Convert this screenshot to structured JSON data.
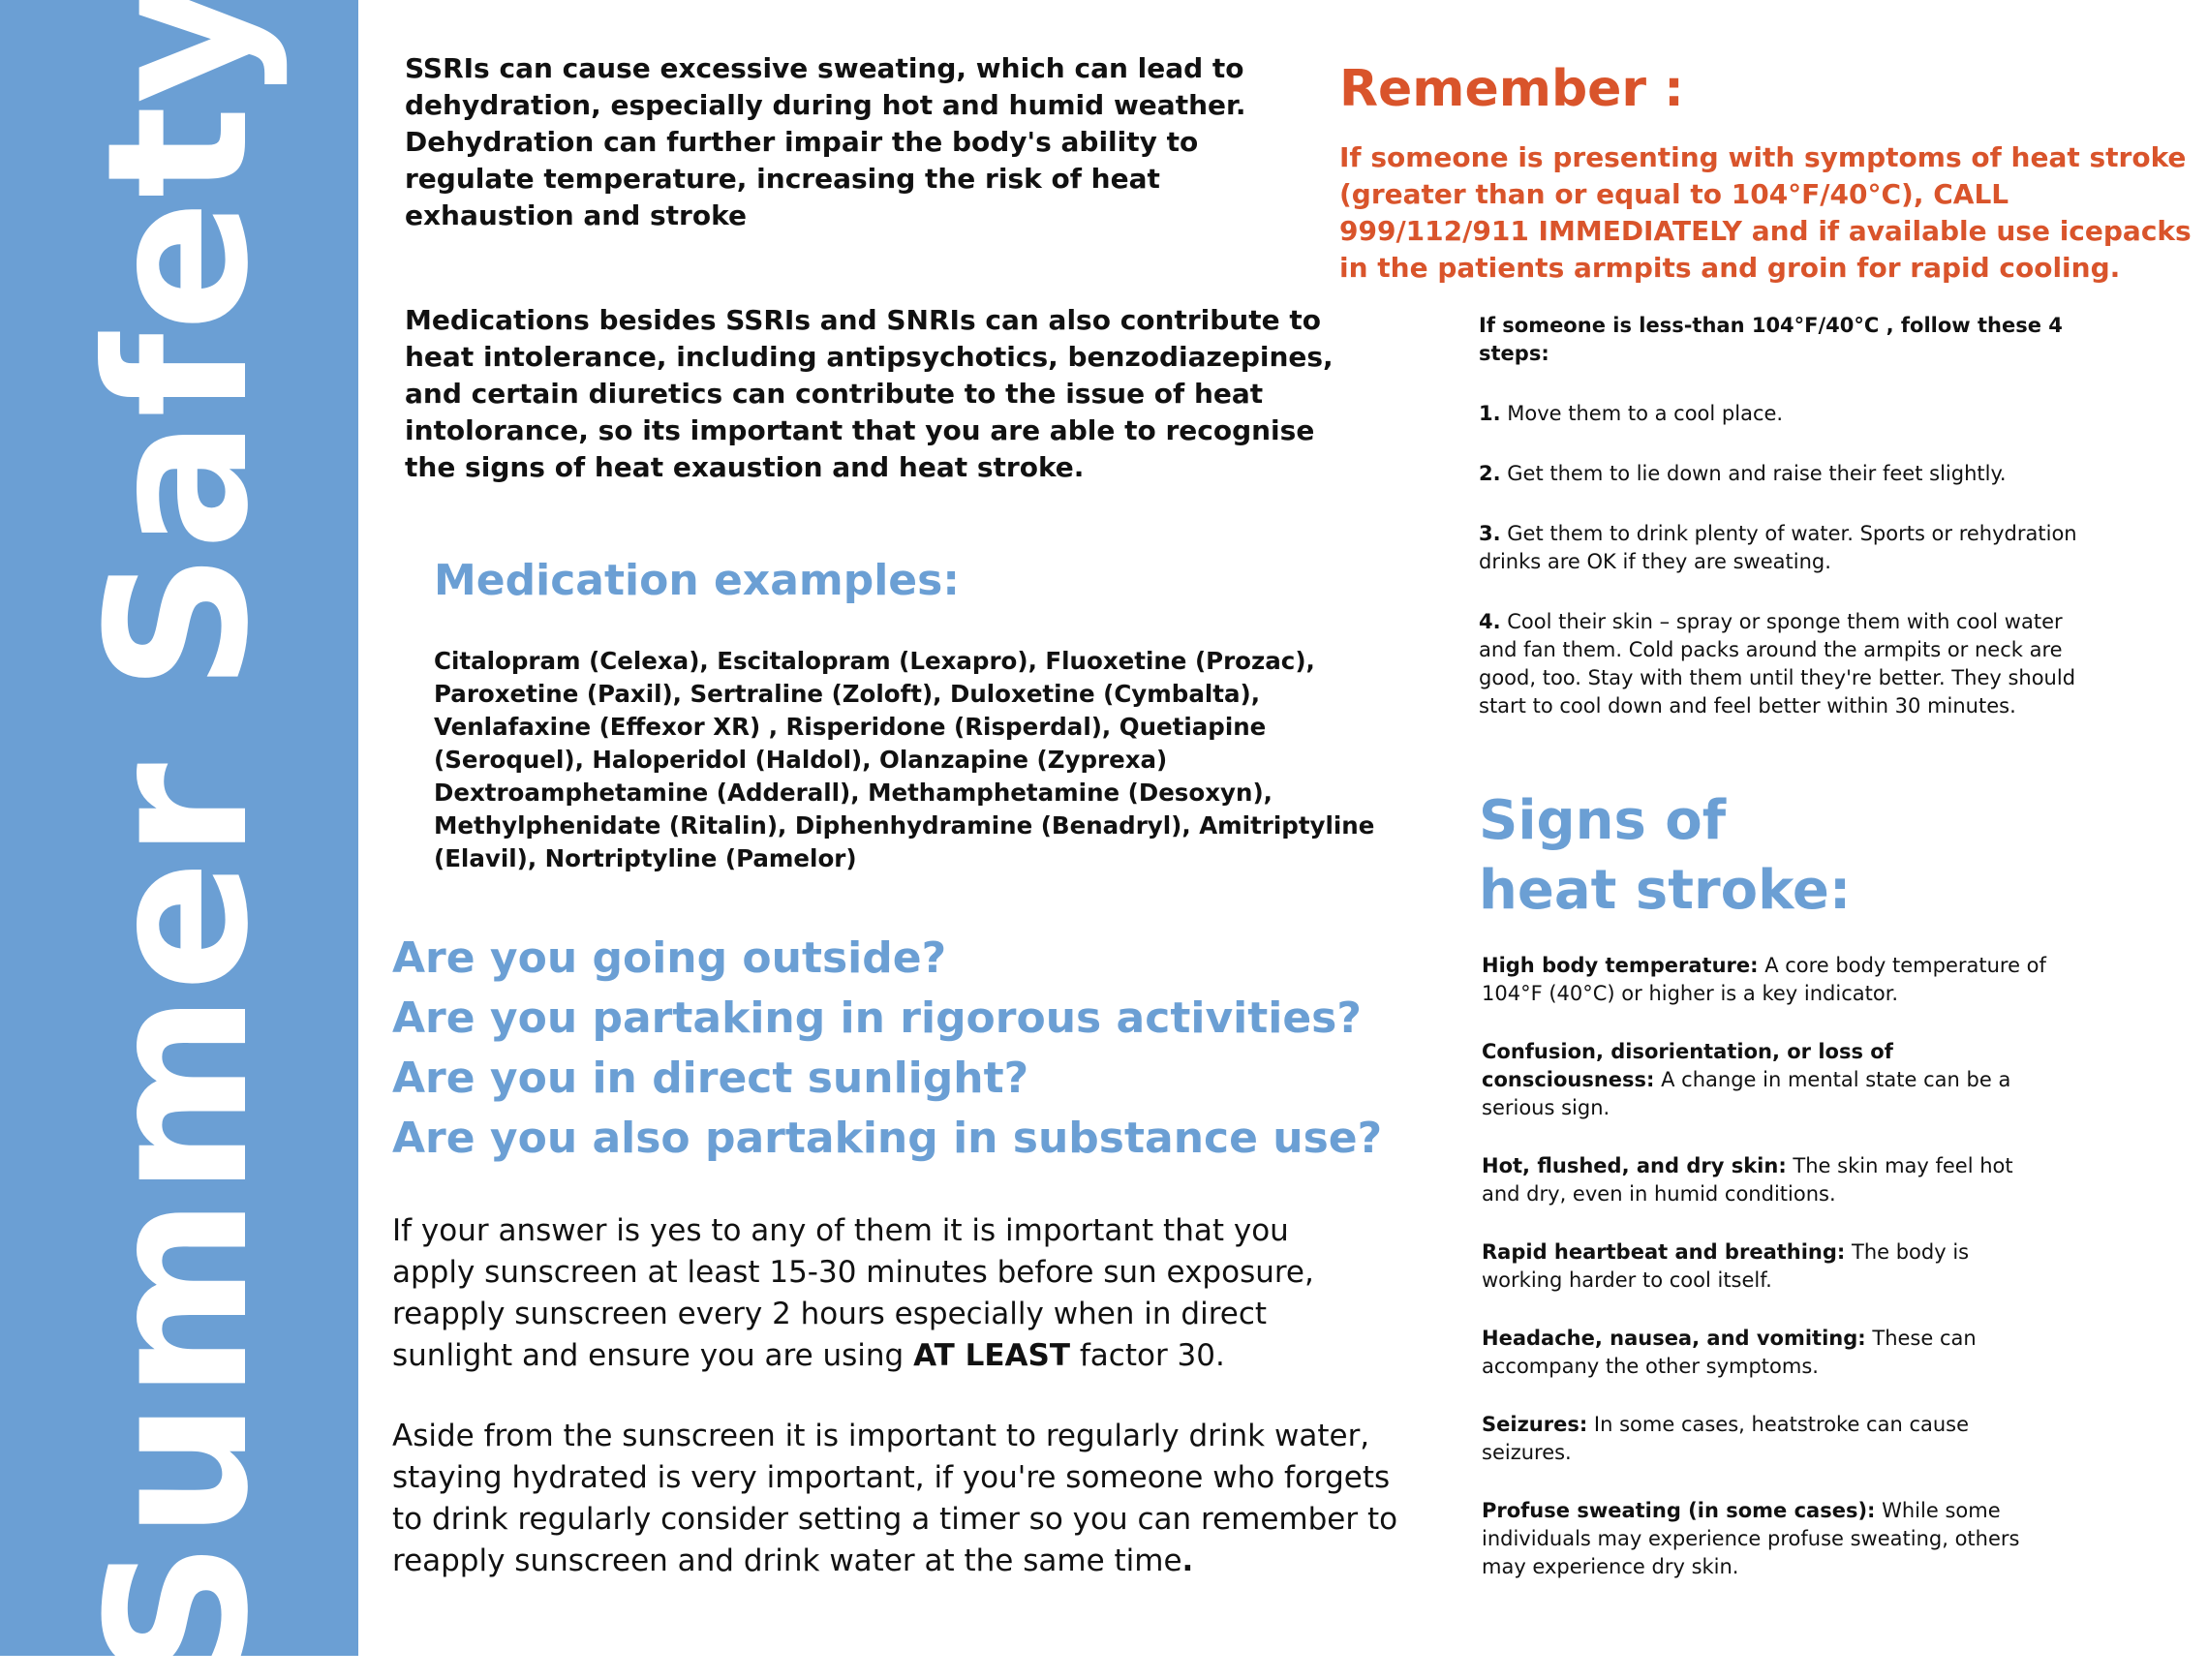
{
  "side_title": "Summer Safety",
  "intro": {
    "ssri_sweating": "SSRIs can cause excessive sweating, which can lead to dehydration, especially during hot and humid weather. Dehydration can further impair the body's ability to regulate temperature, increasing the risk of heat exhaustion and stroke",
    "other_medications": "Medications besides SSRIs and SNRIs can also contribute to heat intolerance, including antipsychotics, benzodiazepines, and certain diuretics  can contribute to the issue of heat intolorance,  so its important that you are able to recognise the signs of heat exaustion and heat stroke."
  },
  "medications": {
    "heading": "Medication examples:",
    "list": "Citalopram (Celexa), Escitalopram (Lexapro), Fluoxetine (Prozac), Paroxetine (Paxil), Sertraline (Zoloft), Duloxetine (Cymbalta), Venlafaxine (Effexor XR) , Risperidone (Risperdal), Quetiapine (Seroquel), Haloperidol (Haldol), Olanzapine (Zyprexa) Dextroamphetamine (Adderall), Methamphetamine (Desoxyn), Methylphenidate (Ritalin), Diphenhydramine (Benadryl), Amitriptyline (Elavil), Nortriptyline (Pamelor)"
  },
  "questions": [
    "Are you going outside?",
    "Are you partaking in rigorous activities?",
    "Are you in direct sunlight?",
    "Are you also partaking in substance use?"
  ],
  "sunscreen": {
    "text_before": "If your answer is yes to any of them it is important that you apply sunscreen at least 15-30 minutes before sun exposure, reapply sunscreen every 2 hours especially when in direct sunlight and ensure you are using ",
    "emphasis": "AT LEAST",
    "text_after": " factor 30."
  },
  "hydration": {
    "text": "Aside from the sunscreen it is important to regularly drink water, staying hydrated is very important, if you're someone who forgets to drink regularly consider setting a timer so you can remember to reapply sunscreen and drink water at the same time",
    "end": "."
  },
  "remember": {
    "heading": "Remember :",
    "text": "If someone is presenting with symptoms of  heat stroke (greater than or equal to 104°F/40°C), CALL 999/112/911 IMMEDIATELY and if available use icepacks in the patients armpits and groin for rapid cooling."
  },
  "steps": {
    "intro": "If someone is less-than 104°F/40°C , follow these 4 steps:",
    "items": [
      {
        "num": "1.",
        "text": " Move them to a cool place."
      },
      {
        "num": "2.",
        "text": " Get them to lie down and raise their feet slightly."
      },
      {
        "num": "3.",
        "text": " Get them to drink plenty of water. Sports or rehydration drinks are OK if they are sweating."
      },
      {
        "num": "4.",
        "text": " Cool their skin – spray or sponge them with cool water and fan them. Cold packs around the armpits or neck are good, too. Stay with them until they're better. They should start to cool down and feel better within 30 minutes."
      }
    ]
  },
  "signs": {
    "heading_line1": "Signs of",
    "heading_line2": "heat stroke:",
    "items": [
      {
        "title": "High body temperature:",
        "text": " A core body temperature of 104°F (40°C) or higher is a key indicator."
      },
      {
        "title": "Confusion, disorientation, or loss of consciousness:",
        "text": " A change in mental state can be a serious sign."
      },
      {
        "title": "Hot, flushed, and dry skin:",
        "text": " The skin may feel hot and dry, even in humid conditions."
      },
      {
        "title": "Rapid heartbeat and breathing:",
        "text": " The body is working harder to cool itself."
      },
      {
        "title": "Headache, nausea, and vomiting:",
        "text": " These can accompany the other symptoms."
      },
      {
        "title": "Seizures:",
        "text": " In some cases, heatstroke can cause seizures."
      },
      {
        "title": "Profuse sweating (in some cases):",
        "text": " While some individuals may experience profuse sweating, others may experience dry skin."
      }
    ]
  },
  "colors": {
    "accent_blue": "#6b9fd4",
    "warning_orange": "#d9542b"
  }
}
